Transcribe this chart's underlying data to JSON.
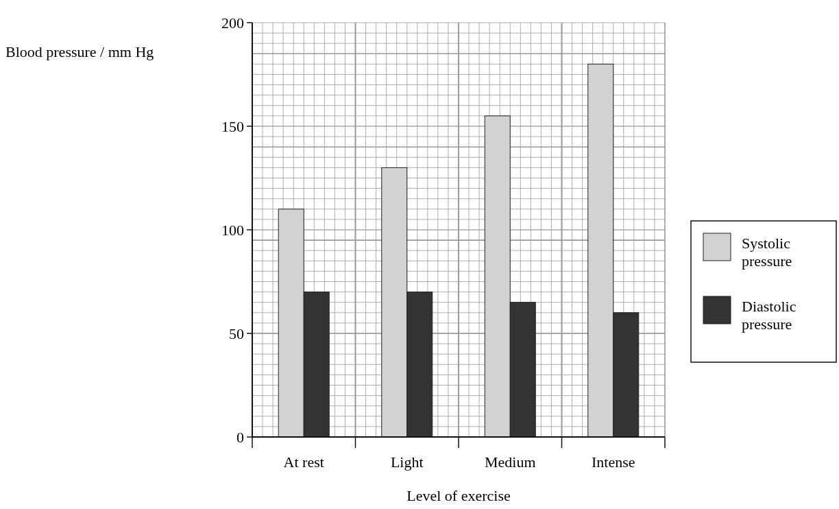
{
  "chart_data": {
    "type": "bar",
    "xlabel": "Level of exercise",
    "ylabel": "Blood pressure / mm Hg",
    "categories": [
      "At rest",
      "Light",
      "Medium",
      "Intense"
    ],
    "series": [
      {
        "name": "Systolic pressure",
        "color": "#d2d2d2",
        "values": [
          110,
          130,
          155,
          180
        ]
      },
      {
        "name": "Diastolic pressure",
        "color": "#333333",
        "values": [
          70,
          70,
          65,
          60
        ]
      }
    ],
    "ylim": [
      0,
      200
    ],
    "yticks": [
      0,
      50,
      100,
      150,
      200
    ],
    "grid": true,
    "legend": "right"
  }
}
